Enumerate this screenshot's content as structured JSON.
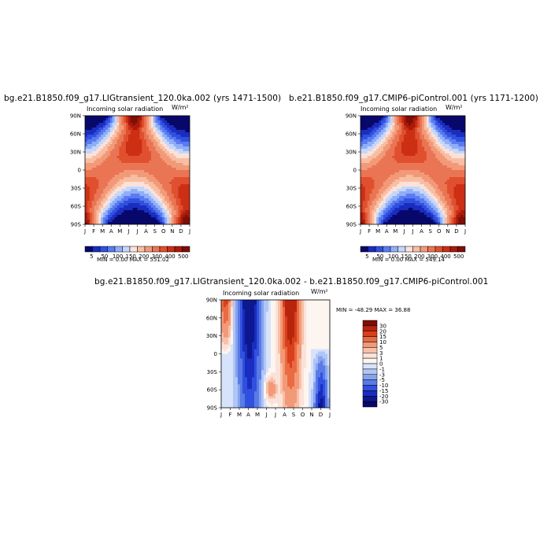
{
  "panels": [
    {
      "title": "bg.e21.B1850.f09_g17.LIGtransient_120.0ka.002 (yrs 1471-1500)",
      "variable": "Incoming solar radiation",
      "units": "W/m²",
      "minmax": "MIN =    0.00 MAX = 551.02"
    },
    {
      "title": "b.e21.B1850.f09_g17.CMIP6-piControl.001 (yrs 1171-1200)",
      "variable": "Incoming solar radiation",
      "units": "W/m²",
      "minmax": "MIN =    0.00 MAX = 549.14"
    },
    {
      "title": "bg.e21.B1850.f09_g17.LIGtransient_120.0ka.002 - b.e21.B1850.f09_g17.CMIP6-piControl.001",
      "variable": "Incoming solar radiation",
      "units": "W/m²",
      "minmax": "MIN = -48.29 MAX =  36.88"
    }
  ],
  "chart_data": [
    {
      "type": "heatmap",
      "title": "bg.e21.B1850.f09_g17.LIGtransient_120.0ka.002 (yrs 1471-1500)",
      "subtitle": "Incoming solar radiation",
      "units": "W/m²",
      "x_ticks": [
        "J",
        "F",
        "M",
        "A",
        "M",
        "J",
        "J",
        "A",
        "S",
        "O",
        "N",
        "D",
        "J"
      ],
      "y_ticks": [
        "90N",
        "60N",
        "30N",
        "0",
        "30S",
        "60S",
        "90S"
      ],
      "ylim": [
        -90,
        90
      ],
      "colorbar_labels": [
        "5",
        "50",
        "100",
        "150",
        "200",
        "300",
        "400",
        "500"
      ],
      "min": 0.0,
      "max": 551.02
    },
    {
      "type": "heatmap",
      "title": "b.e21.B1850.f09_g17.CMIP6-piControl.001 (yrs 1171-1200)",
      "subtitle": "Incoming solar radiation",
      "units": "W/m²",
      "x_ticks": [
        "J",
        "F",
        "M",
        "A",
        "M",
        "J",
        "J",
        "A",
        "S",
        "O",
        "N",
        "D",
        "J"
      ],
      "y_ticks": [
        "90N",
        "60N",
        "30N",
        "0",
        "30S",
        "60S",
        "90S"
      ],
      "ylim": [
        -90,
        90
      ],
      "colorbar_labels": [
        "5",
        "50",
        "100",
        "150",
        "200",
        "300",
        "400",
        "500"
      ],
      "min": 0.0,
      "max": 549.14
    },
    {
      "type": "heatmap",
      "title": "bg.e21.B1850.f09_g17.LIGtransient_120.0ka.002 - b.e21.B1850.f09_g17.CMIP6-piControl.001",
      "subtitle": "Incoming solar radiation",
      "units": "W/m²",
      "x_ticks": [
        "J",
        "F",
        "M",
        "A",
        "M",
        "J",
        "J",
        "A",
        "S",
        "O",
        "N",
        "D",
        "J"
      ],
      "y_ticks": [
        "90N",
        "60N",
        "30N",
        "0",
        "30S",
        "60S",
        "90S"
      ],
      "ylim": [
        -90,
        90
      ],
      "colorbar_labels": [
        "30",
        "20",
        "15",
        "10",
        "5",
        "3",
        "1",
        "0",
        "-1",
        "-3",
        "-5",
        "-10",
        "-15",
        "-20",
        "-30"
      ],
      "min": -48.29,
      "max": 36.88
    }
  ],
  "colors": {
    "abs_scale": [
      "#08086b",
      "#1a2dbf",
      "#3050e0",
      "#5a7af0",
      "#90aef8",
      "#c4d6fc",
      "#fbe2d8",
      "#f8bea4",
      "#f29a78",
      "#ea7554",
      "#e0502e",
      "#cc2f14",
      "#a81a0a",
      "#7e0e06"
    ],
    "diff_scale": [
      "#7e0e06",
      "#b8240c",
      "#d8401c",
      "#ea6a42",
      "#f29a78",
      "#f8c0a8",
      "#fbe2d8",
      "#fdf5ef",
      "#d7e2fb",
      "#b0c6f6",
      "#86a4ee",
      "#5a7ae6",
      "#3050e0",
      "#1a2dbf",
      "#0d1890",
      "#08086b"
    ]
  }
}
